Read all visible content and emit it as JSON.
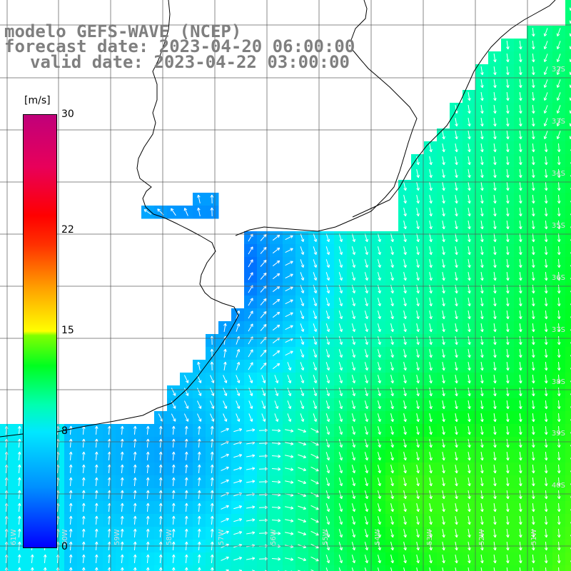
{
  "title": {
    "line1": "modelo GEFS-WAVE (NCEP)",
    "line2": "forecast date: 2023-04-20 06:00:00",
    "line3": "valid date: 2023-04-22 03:00:00"
  },
  "colorbar": {
    "unit": "[m/s]",
    "ticks": [
      {
        "value": 30,
        "label": "30"
      },
      {
        "value": 22,
        "label": "22"
      },
      {
        "value": 15,
        "label": "15"
      },
      {
        "value": 8,
        "label": "8"
      },
      {
        "value": 0,
        "label": "0"
      }
    ],
    "range": [
      0,
      30
    ]
  },
  "map": {
    "latitude_labels": [
      "32S",
      "33S",
      "34S",
      "35S",
      "36S",
      "37S",
      "38S",
      "39S",
      "40S"
    ],
    "longitude_labels": [
      "61W",
      "60W",
      "59W",
      "58W",
      "57W",
      "56W",
      "55W",
      "54W",
      "53W",
      "52W",
      "51W"
    ],
    "wind_direction": "toward south",
    "colors": {
      "land": "#ffffff",
      "coast": "#000000",
      "grid": "#555555",
      "arrows": "#ffffff",
      "title": "#7f7f7f"
    }
  }
}
